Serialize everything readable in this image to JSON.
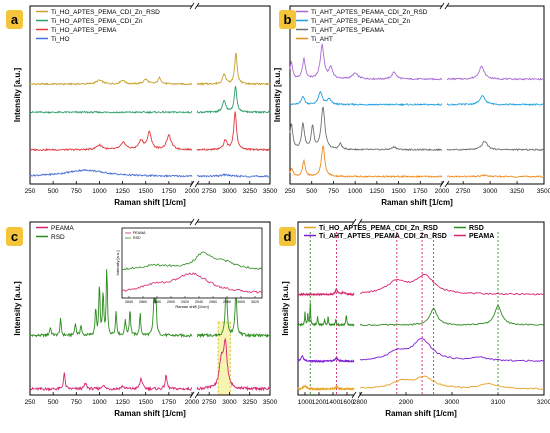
{
  "panels": {
    "a": {
      "label": "a",
      "ylabel": "Intensity [a.u.]",
      "xlabel": "Raman shift [1/cm]",
      "ticks_left": [
        "250",
        "500",
        "750",
        "1000",
        "1250",
        "1500",
        "1750",
        "2000"
      ],
      "ticks_right": [
        "2750",
        "3000",
        "3250",
        "3500"
      ],
      "legend": [
        "Ti_HO_APTES_PEMA_CDI_Zn_RSD",
        "Ti_HO_APTES_PEMA_CDI_Zn",
        "Ti_HO_APTES_PEMA",
        "Ti_HO"
      ]
    },
    "b": {
      "label": "b",
      "ylabel": "Intensity [a.u.]",
      "xlabel": "Raman shift [1/cm]",
      "ticks_left": [
        "250",
        "500",
        "750",
        "1000",
        "1250",
        "1500",
        "1750",
        "2000"
      ],
      "ticks_right": [
        "2750",
        "3000",
        "3250",
        "3500"
      ],
      "legend": [
        "Ti_AHT_APTES_PEAMA_CDI_Zn_RSD",
        "Ti_AHT_APTES_PEAMA_CDI_Zn",
        "Ti_AHT_APTES_PEAMA",
        "Ti_AHT"
      ]
    },
    "c": {
      "label": "c",
      "ylabel": "Intensity [a.u.]",
      "xlabel": "Raman shift [1/cm]",
      "ticks_left": [
        "250",
        "500",
        "750",
        "1000",
        "1250",
        "1500",
        "1750",
        "2000"
      ],
      "ticks_right": [
        "2750",
        "3000",
        "3250",
        "3500"
      ],
      "legend": [
        "PEAMA",
        "RSD"
      ],
      "inset": {
        "ylabel": "Intensity [a.u.]",
        "xlabel": "Raman shift [1/cm]",
        "legend": [
          "PEAMA",
          "RSD"
        ],
        "ticks": [
          "2840",
          "2860",
          "2880",
          "2900",
          "2920",
          "2940",
          "2960",
          "2980",
          "3000",
          "3020"
        ]
      }
    },
    "d": {
      "label": "d",
      "ylabel": "Intensity [a.u.]",
      "xlabel": "Raman shift [1/cm]",
      "ticks_left": [
        "1000",
        "1200",
        "1400",
        "1600"
      ],
      "ticks_right": [
        "2800",
        "2900",
        "3000",
        "3100",
        "3200"
      ],
      "legend": [
        "Ti_HO_APTES_PEMA_CDI_Zn_RSD",
        "RSD",
        "Ti_AHT_APTES_PEAMA_CDI_Zn_RSD",
        "PEAMA"
      ]
    }
  },
  "colors": {
    "gold": "#c8a02a",
    "green": "#2e9e6a",
    "red": "#e0393e",
    "blue": "#4a6fd6",
    "purple": "#a86ad6",
    "skyblue": "#1e9fe0",
    "gray": "#707070",
    "orange": "#f08a1a",
    "magenta": "#d6246e",
    "dkgreen": "#2c8c1e",
    "violet": "#7d1fd6",
    "amber": "#e8a020",
    "highlight": "#f4f0a0",
    "labelbg": "#f4c53a",
    "vgreen": "#2c8c1e",
    "vmagenta": "#d6246e"
  },
  "chart_data": [
    {
      "type": "line",
      "panel": "a",
      "x_left_range": [
        250,
        2000
      ],
      "x_right_range": [
        2600,
        3500
      ],
      "grid": false,
      "series": [
        {
          "name": "Ti_HO_APTES_PEMA_CDI_Zn_RSD",
          "color": "gold",
          "offset": 3,
          "peaks": [
            [
              1000,
              0.12,
              40
            ],
            [
              1250,
              0.12,
              30
            ],
            [
              1500,
              0.15,
              30
            ],
            [
              1650,
              0.2,
              20
            ],
            [
              2935,
              0.3,
              25
            ],
            [
              3080,
              1.0,
              18
            ]
          ]
        },
        {
          "name": "Ti_HO_APTES_PEMA_CDI_Zn",
          "color": "green",
          "offset": 2.1,
          "peaks": [
            [
              2935,
              0.35,
              25
            ],
            [
              3075,
              0.85,
              18
            ]
          ]
        },
        {
          "name": "Ti_HO_APTES_PEMA",
          "color": "red",
          "offset": 0.9,
          "peaks": [
            [
              1000,
              0.15,
              40
            ],
            [
              1260,
              0.22,
              35
            ],
            [
              1450,
              0.28,
              30
            ],
            [
              1540,
              0.55,
              25
            ],
            [
              1750,
              0.45,
              30
            ],
            [
              2950,
              0.3,
              25
            ],
            [
              3070,
              1.2,
              20
            ]
          ]
        },
        {
          "name": "Ti_HO",
          "color": "blue",
          "offset": 0.05,
          "peaks": [
            [
              850,
              0.2,
              260
            ],
            [
              2950,
              0.05,
              60
            ]
          ]
        }
      ]
    },
    {
      "type": "line",
      "panel": "b",
      "x_left_range": [
        250,
        2000
      ],
      "x_right_range": [
        2600,
        3500
      ],
      "grid": false,
      "series": [
        {
          "name": "Ti_AHT_APTES_PEAMA_CDI_Zn_RSD",
          "color": "purple",
          "offset": 3.5,
          "peaks": [
            [
              265,
              0.6,
              18
            ],
            [
              410,
              0.7,
              20
            ],
            [
              620,
              1.2,
              25
            ],
            [
              720,
              0.4,
              25
            ],
            [
              1000,
              0.2,
              40
            ],
            [
              1450,
              0.25,
              30
            ],
            [
              2920,
              0.45,
              30
            ]
          ]
        },
        {
          "name": "Ti_AHT_APTES_PEAMA_CDI_Zn",
          "color": "skyblue",
          "offset": 2.6,
          "peaks": [
            [
              400,
              0.3,
              20
            ],
            [
              600,
              0.45,
              25
            ],
            [
              700,
              0.2,
              25
            ],
            [
              2930,
              0.3,
              30
            ]
          ]
        },
        {
          "name": "Ti_AHT_APTES_PEAMA",
          "color": "gray",
          "offset": 1.0,
          "peaks": [
            [
              265,
              0.9,
              20
            ],
            [
              400,
              0.9,
              20
            ],
            [
              510,
              0.8,
              18
            ],
            [
              630,
              1.5,
              25
            ],
            [
              830,
              0.2,
              20
            ],
            [
              1450,
              0.1,
              30
            ],
            [
              2950,
              0.3,
              30
            ]
          ]
        },
        {
          "name": "Ti_AHT",
          "color": "orange",
          "offset": 0.05,
          "peaks": [
            [
              270,
              0.3,
              18
            ],
            [
              410,
              0.55,
              18
            ],
            [
              630,
              1.1,
              22
            ],
            [
              2950,
              0.05,
              30
            ]
          ]
        }
      ]
    },
    {
      "type": "line",
      "panel": "c",
      "x_left_range": [
        250,
        2000
      ],
      "x_right_range": [
        2600,
        3500
      ],
      "grid": false,
      "series": [
        {
          "name": "RSD",
          "color": "dkgreen",
          "offset": 1.0,
          "peaks": [
            [
              470,
              0.15,
              10
            ],
            [
              580,
              0.3,
              8
            ],
            [
              740,
              0.25,
              8
            ],
            [
              800,
              0.2,
              8
            ],
            [
              960,
              0.5,
              8
            ],
            [
              1000,
              1.0,
              7
            ],
            [
              1040,
              0.85,
              7
            ],
            [
              1080,
              1.3,
              7
            ],
            [
              1180,
              0.45,
              8
            ],
            [
              1280,
              0.3,
              8
            ],
            [
              1330,
              0.5,
              8
            ],
            [
              1440,
              0.4,
              8
            ],
            [
              1590,
              0.7,
              9
            ],
            [
              1610,
              0.6,
              9
            ],
            [
              2960,
              1.1,
              12
            ],
            [
              3080,
              0.9,
              12
            ]
          ]
        },
        {
          "name": "PEAMA",
          "color": "magenta",
          "offset": 0.0,
          "peaks": [
            [
              620,
              0.3,
              10
            ],
            [
              850,
              0.1,
              15
            ],
            [
              1040,
              0.08,
              15
            ],
            [
              1250,
              0.05,
              20
            ],
            [
              1450,
              0.2,
              15
            ],
            [
              1720,
              0.25,
              12
            ],
            [
              2900,
              0.5,
              30
            ],
            [
              2950,
              0.8,
              25
            ]
          ]
        }
      ],
      "inset": {
        "x_range": [
          2830,
          3030
        ],
        "series": [
          {
            "name": "RSD",
            "color": "dkgreen",
            "offset": 0.55,
            "peaks": [
              [
                2945,
                0.3,
                12
              ],
              [
                2970,
                0.2,
                25
              ],
              [
                2880,
                0.1,
                30
              ]
            ]
          },
          {
            "name": "PEAMA",
            "color": "magenta",
            "offset": 0.0,
            "peaks": [
              [
                2875,
                0.15,
                25
              ],
              [
                2930,
                0.45,
                30
              ]
            ]
          }
        ]
      }
    },
    {
      "type": "line",
      "panel": "d",
      "x_left_range": [
        900,
        1700
      ],
      "x_right_range": [
        2800,
        3200
      ],
      "vlines_green": [
        1075,
        2960,
        3100
      ],
      "vlines_magenta": [
        1450,
        2880,
        2935
      ],
      "grid": false,
      "series": [
        {
          "name": "PEAMA",
          "color": "magenta",
          "offset": 3.4,
          "peaks": [
            [
              1450,
              0.18,
              20
            ],
            [
              1550,
              0.08,
              20
            ],
            [
              2880,
              0.45,
              25
            ],
            [
              2940,
              0.65,
              25
            ]
          ]
        },
        {
          "name": "RSD",
          "color": "dkgreen",
          "offset": 2.3,
          "peaks": [
            [
              1000,
              0.5,
              6
            ],
            [
              1040,
              0.4,
              6
            ],
            [
              1075,
              0.8,
              6
            ],
            [
              1180,
              0.3,
              7
            ],
            [
              1280,
              0.2,
              7
            ],
            [
              1330,
              0.3,
              7
            ],
            [
              1440,
              0.2,
              7
            ],
            [
              1590,
              0.35,
              8
            ],
            [
              2960,
              0.6,
              9
            ],
            [
              3100,
              0.7,
              9
            ]
          ]
        },
        {
          "name": "Ti_AHT_APTES_PEAMA_CDI_Zn_RSD",
          "color": "violet",
          "offset": 1.0,
          "peaks": [
            [
              960,
              0.2,
              20
            ],
            [
              1450,
              0.12,
              20
            ],
            [
              2880,
              0.3,
              25
            ],
            [
              2935,
              0.75,
              25
            ],
            [
              3060,
              0.12,
              20
            ]
          ]
        },
        {
          "name": "Ti_HO_APTES_PEMA_CDI_Zn_RSD",
          "color": "amber",
          "offset": 0.0,
          "peaks": [
            [
              1000,
              0.1,
              30
            ],
            [
              1450,
              0.08,
              20
            ],
            [
              2890,
              0.25,
              25
            ],
            [
              2940,
              0.4,
              25
            ],
            [
              3080,
              0.2,
              20
            ]
          ]
        }
      ]
    }
  ]
}
